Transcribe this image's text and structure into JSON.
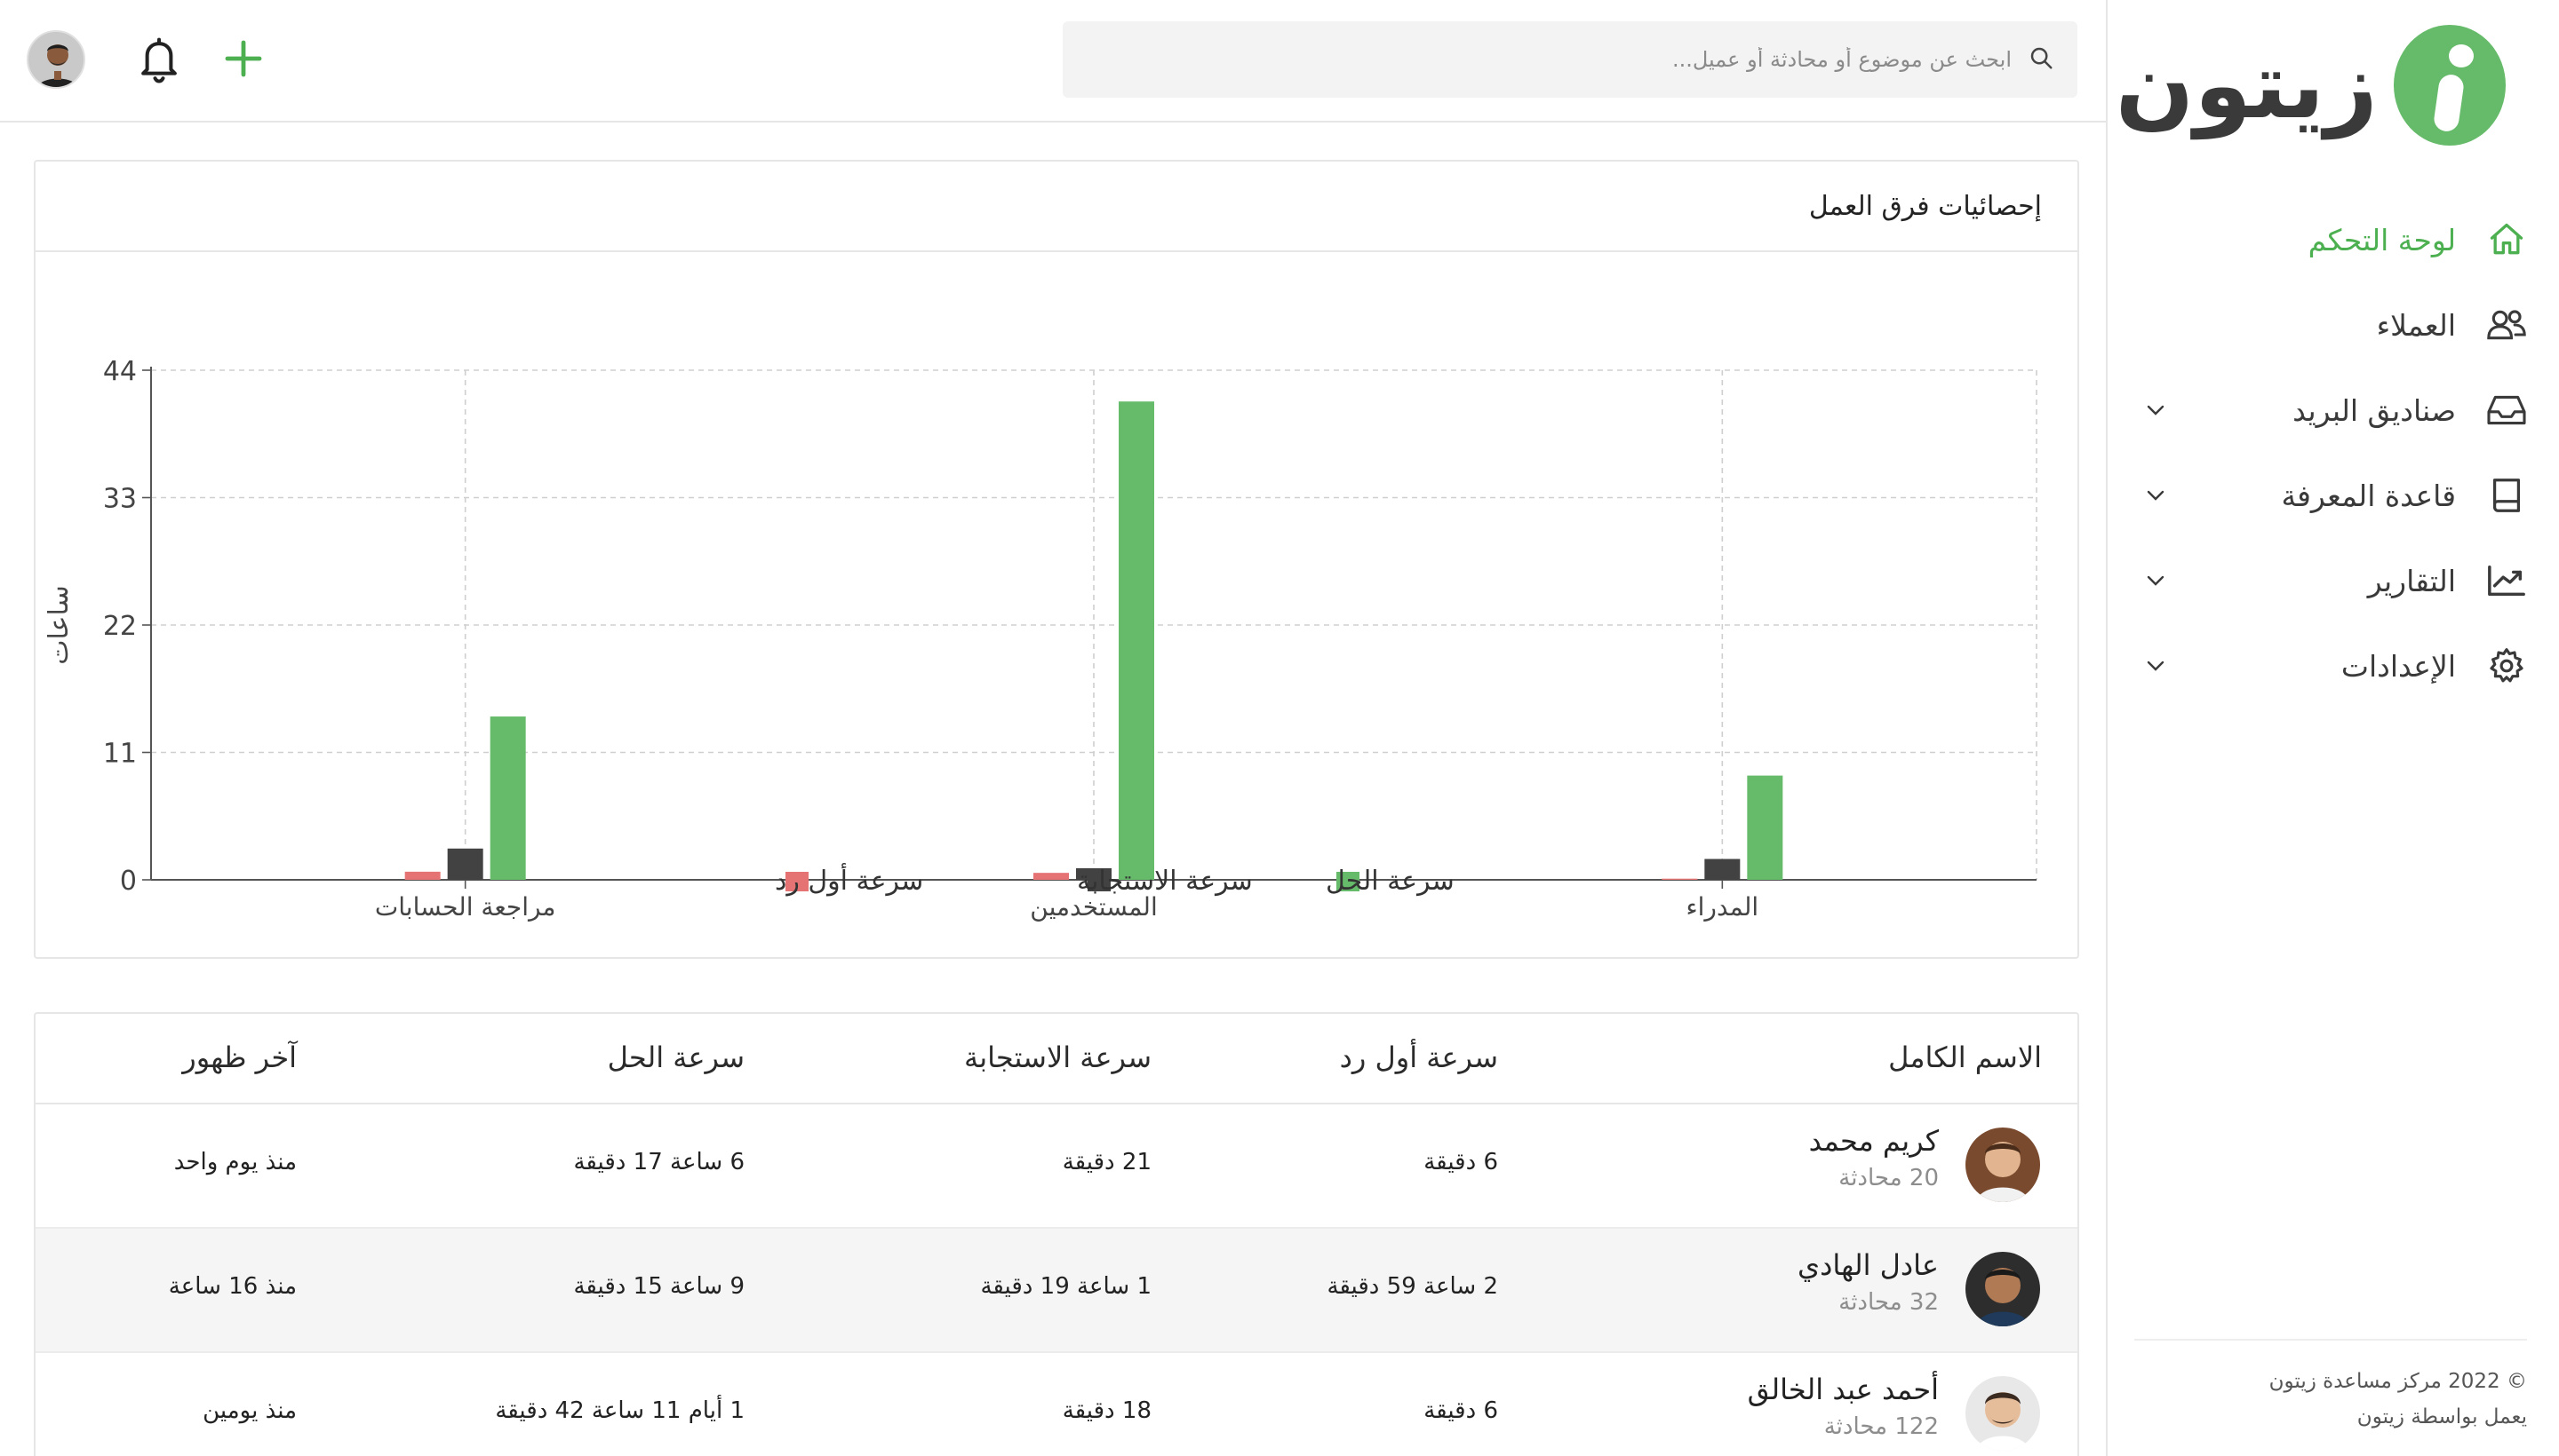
{
  "brand": {
    "logo_text": "زيتون",
    "accent": "#66bb6a"
  },
  "header": {
    "search_placeholder": "ابحث عن موضوع أو محادثة أو عميل..."
  },
  "sidebar": {
    "items": [
      {
        "label": "لوحة التحكم",
        "icon": "home-icon",
        "active": true,
        "has_chevron": false
      },
      {
        "label": "العملاء",
        "icon": "users-icon",
        "active": false,
        "has_chevron": false
      },
      {
        "label": "صناديق البريد",
        "icon": "inbox-icon",
        "active": false,
        "has_chevron": true
      },
      {
        "label": "قاعدة المعرفة",
        "icon": "book-icon",
        "active": false,
        "has_chevron": true
      },
      {
        "label": "التقارير",
        "icon": "chart-line-icon",
        "active": false,
        "has_chevron": true
      },
      {
        "label": "الإعدادات",
        "icon": "gear-icon",
        "active": false,
        "has_chevron": true
      }
    ],
    "footer_line1": "© 2022 مركز مساعدة زيتون",
    "footer_line2": "يعمل بواسطة زيتون"
  },
  "chart_card": {
    "title": "إحصائيات فرق العمل"
  },
  "chart_data": {
    "type": "bar",
    "ylabel": "ساعات",
    "ylim": [
      0,
      44
    ],
    "yticks": [
      0,
      11,
      22,
      33,
      44
    ],
    "categories": [
      "مراجعة الحسابات",
      "المستخدمين",
      "المدراء"
    ],
    "series": [
      {
        "name": "سرعة أول رد",
        "color": "#e57373",
        "values": [
          0.7,
          0.6,
          0.1
        ]
      },
      {
        "name": "سرعة الاستجابة",
        "color": "#424242",
        "values": [
          2.7,
          1.0,
          1.8
        ]
      },
      {
        "name": "سرعة الحل",
        "color": "#66bb6a",
        "values": [
          14.1,
          41.3,
          9.0
        ]
      }
    ],
    "legend_order": [
      "سرعة الحل",
      "سرعة الاستجابة",
      "سرعة أول رد"
    ],
    "grid": true,
    "legend_position": "bottom-center"
  },
  "table": {
    "headers": {
      "name": "الاسم الكامل",
      "first_reply": "سرعة أول رد",
      "response": "سرعة الاستجابة",
      "resolution": "سرعة الحل",
      "last_seen": "آخر ظهور"
    },
    "rows": [
      {
        "name": "كريم محمد",
        "count": "20 محادثة",
        "first_reply": "6 دقيقة",
        "response": "21 دقيقة",
        "resolution": "6 ساعة 17 دقيقة",
        "last_seen": "منذ يوم واحد"
      },
      {
        "name": "عادل الهادي",
        "count": "32 محادثة",
        "first_reply": "2 ساعة 59 دقيقة",
        "response": "1 ساعة 19 دقيقة",
        "resolution": "9 ساعة 15 دقيقة",
        "last_seen": "منذ 16 ساعة"
      },
      {
        "name": "أحمد عبد الخالق",
        "count": "122 محادثة",
        "first_reply": "6 دقيقة",
        "response": "18 دقيقة",
        "resolution": "1 أيام 11 ساعة 42 دقيقة",
        "last_seen": "منذ يومين"
      }
    ]
  }
}
